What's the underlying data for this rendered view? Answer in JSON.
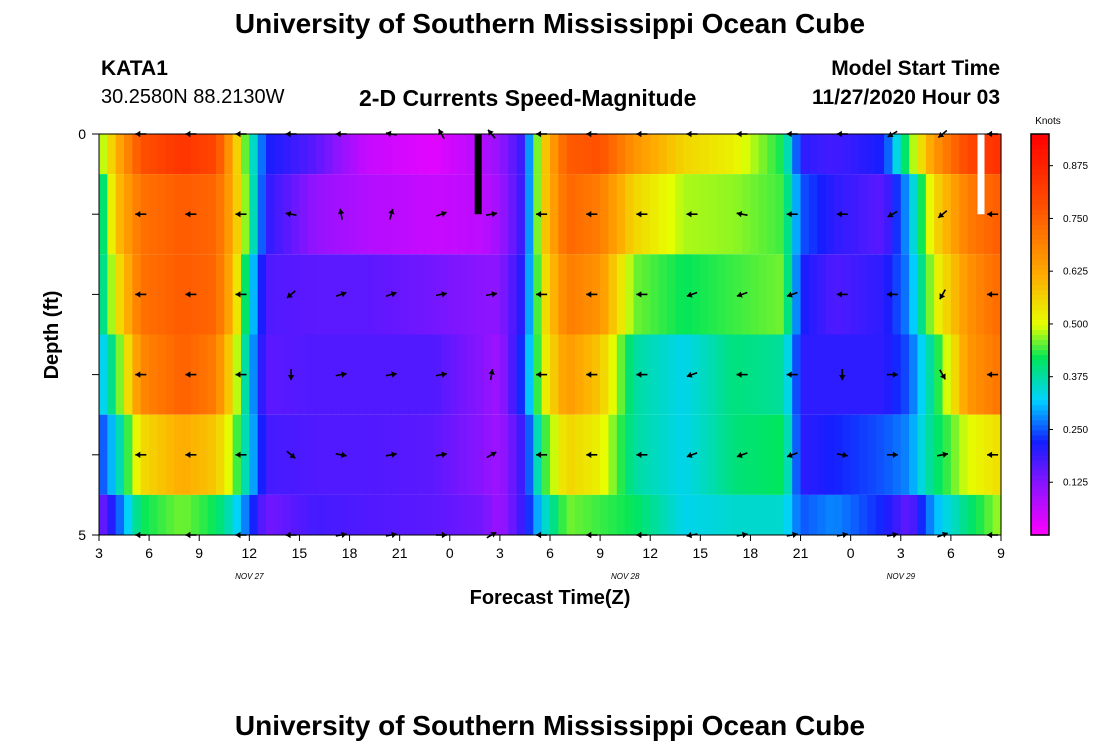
{
  "header": {
    "title": "University of Southern Mississippi Ocean Cube",
    "footer_title": "University of Southern Mississippi Ocean Cube",
    "station": "KATA1",
    "coords": "30.2580N 88.2130W",
    "chart_title": "2-D Currents Speed-Magnitude",
    "model_start_label": "Model Start Time",
    "model_start_value": "11/27/2020 Hour 03"
  },
  "chart_data": {
    "type": "heatmap",
    "title": "2-D Currents Speed-Magnitude",
    "xlabel": "Forecast Time(Z)",
    "ylabel": "Depth (ft)",
    "x_tick_labels": [
      "3",
      "6",
      "9",
      "12",
      "15",
      "18",
      "21",
      "0",
      "3",
      "6",
      "9",
      "12",
      "15",
      "18",
      "21",
      "0",
      "3",
      "6",
      "9"
    ],
    "date_labels": [
      {
        "label": "NOV 27",
        "at_hour": 12
      },
      {
        "label": "NOV 28",
        "at_hour": 34.5
      },
      {
        "label": "NOV 29",
        "at_hour": 51
      }
    ],
    "y_tick_labels": [
      "0",
      "5"
    ],
    "xlim_hours": [
      3,
      57
    ],
    "ylim_ft": [
      0,
      5
    ],
    "depth_levels_ft": [
      0,
      1,
      2,
      3,
      4,
      5
    ],
    "colorbar": {
      "unit": "Knots",
      "range": [
        0,
        0.95
      ],
      "tick_values": [
        0.125,
        0.25,
        0.375,
        0.5,
        0.625,
        0.75,
        0.875
      ],
      "tick_labels": [
        "0.125",
        "0.250",
        "0.375",
        "0.500",
        "0.625",
        "0.750",
        "0.875"
      ]
    },
    "speed_keyframes": [
      {
        "hour": 3,
        "values": [
          0.45,
          0.35,
          0.35,
          0.3,
          0.23,
          0.13
        ]
      },
      {
        "hour": 4,
        "values": [
          0.6,
          0.58,
          0.52,
          0.42,
          0.33,
          0.23
        ]
      },
      {
        "hour": 5.5,
        "values": [
          0.78,
          0.72,
          0.72,
          0.68,
          0.55,
          0.42
        ]
      },
      {
        "hour": 8,
        "values": [
          0.84,
          0.76,
          0.76,
          0.75,
          0.62,
          0.46
        ]
      },
      {
        "hour": 10,
        "values": [
          0.8,
          0.74,
          0.74,
          0.7,
          0.58,
          0.42
        ]
      },
      {
        "hour": 11,
        "values": [
          0.62,
          0.62,
          0.6,
          0.54,
          0.48,
          0.35
        ]
      },
      {
        "hour": 12,
        "values": [
          0.4,
          0.42,
          0.35,
          0.32,
          0.33,
          0.25
        ]
      },
      {
        "hour": 13,
        "values": [
          0.22,
          0.2,
          0.17,
          0.16,
          0.18,
          0.14
        ]
      },
      {
        "hour": 16,
        "values": [
          0.16,
          0.11,
          0.16,
          0.17,
          0.17,
          0.18
        ]
      },
      {
        "hour": 19,
        "values": [
          0.06,
          0.08,
          0.16,
          0.17,
          0.17,
          0.17
        ]
      },
      {
        "hour": 23,
        "values": [
          0.03,
          0.06,
          0.14,
          0.17,
          0.16,
          0.16
        ]
      },
      {
        "hour": 26,
        "values": [
          0.08,
          0.07,
          0.12,
          0.12,
          0.12,
          0.14
        ]
      },
      {
        "hour": 27,
        "values": [
          0.11,
          0.1,
          0.12,
          0.1,
          0.1,
          0.1
        ]
      },
      {
        "hour": 28.5,
        "values": [
          0.2,
          0.2,
          0.22,
          0.25,
          0.2,
          0.2
        ]
      },
      {
        "hour": 29.5,
        "values": [
          0.55,
          0.55,
          0.52,
          0.5,
          0.42,
          0.33
        ]
      },
      {
        "hour": 31,
        "values": [
          0.76,
          0.74,
          0.7,
          0.65,
          0.56,
          0.46
        ]
      },
      {
        "hour": 33,
        "values": [
          0.78,
          0.7,
          0.66,
          0.58,
          0.52,
          0.44
        ]
      },
      {
        "hour": 35,
        "values": [
          0.66,
          0.56,
          0.46,
          0.38,
          0.38,
          0.42
        ]
      },
      {
        "hour": 38,
        "values": [
          0.56,
          0.48,
          0.42,
          0.33,
          0.33,
          0.33
        ]
      },
      {
        "hour": 41,
        "values": [
          0.52,
          0.47,
          0.44,
          0.4,
          0.4,
          0.35
        ]
      },
      {
        "hour": 44,
        "values": [
          0.42,
          0.44,
          0.46,
          0.38,
          0.42,
          0.35
        ]
      },
      {
        "hour": 45,
        "values": [
          0.2,
          0.25,
          0.22,
          0.2,
          0.2,
          0.25
        ]
      },
      {
        "hour": 47,
        "values": [
          0.18,
          0.2,
          0.17,
          0.2,
          0.22,
          0.28
        ]
      },
      {
        "hour": 50,
        "values": [
          0.22,
          0.16,
          0.2,
          0.2,
          0.25,
          0.22
        ]
      },
      {
        "hour": 51.5,
        "values": [
          0.45,
          0.3,
          0.28,
          0.25,
          0.28,
          0.15
        ]
      },
      {
        "hour": 53,
        "values": [
          0.65,
          0.55,
          0.5,
          0.4,
          0.4,
          0.3
        ]
      },
      {
        "hour": 55,
        "values": [
          0.8,
          0.7,
          0.66,
          0.65,
          0.5,
          0.4
        ]
      },
      {
        "hour": 57,
        "values": [
          0.85,
          0.76,
          0.74,
          0.72,
          0.55,
          0.48
        ]
      }
    ],
    "missing_data": [
      {
        "hour": 25.7,
        "depth_from": 0,
        "depth_to": 1,
        "color": "#000000"
      },
      {
        "hour": 55.8,
        "depth_from": 0,
        "depth_to": 1,
        "color": "#ffffff"
      }
    ],
    "arrow_hours": [
      5.5,
      8.5,
      11.5,
      14.5,
      17.5,
      20.5,
      23.5,
      26.5,
      29.5,
      32.5,
      35.5,
      38.5,
      41.5,
      44.5,
      47.5,
      50.5,
      53.5,
      56.5
    ],
    "arrow_depths_ft": [
      0,
      1,
      2,
      3,
      4,
      5
    ],
    "arrow_directions_deg": [
      [
        180,
        180,
        180,
        180,
        180,
        170,
        120,
        130,
        180,
        180,
        180,
        180,
        180,
        180,
        180,
        210,
        220,
        180
      ],
      [
        180,
        180,
        180,
        170,
        100,
        75,
        20,
        10,
        180,
        180,
        180,
        180,
        170,
        180,
        180,
        210,
        220,
        180
      ],
      [
        180,
        180,
        180,
        220,
        20,
        20,
        10,
        10,
        180,
        180,
        180,
        200,
        200,
        200,
        180,
        180,
        240,
        180
      ],
      [
        180,
        180,
        180,
        270,
        10,
        10,
        10,
        80,
        180,
        180,
        180,
        200,
        180,
        180,
        270,
        0,
        300,
        180
      ],
      [
        180,
        180,
        180,
        320,
        350,
        10,
        10,
        30,
        180,
        180,
        180,
        200,
        200,
        200,
        350,
        0,
        10,
        180
      ],
      [
        180,
        180,
        180,
        180,
        10,
        10,
        0,
        30,
        180,
        180,
        180,
        190,
        10,
        10,
        10,
        10,
        20,
        180
      ]
    ]
  }
}
